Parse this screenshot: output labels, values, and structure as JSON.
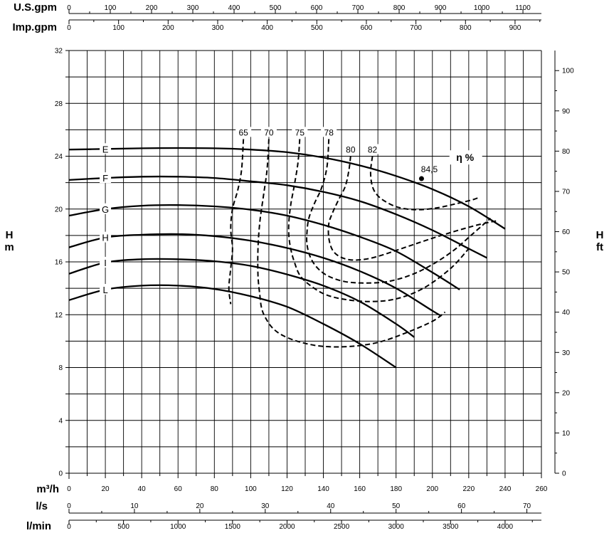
{
  "chart_data": {
    "type": "line",
    "title": "",
    "x_axis": {
      "label": "m³/h",
      "min": 0,
      "max": 260,
      "ticks": [
        0,
        20,
        40,
        60,
        80,
        100,
        120,
        140,
        160,
        180,
        200,
        220,
        240,
        260
      ]
    },
    "y_axis_left": {
      "label_top": "H",
      "label_bottom": "m",
      "min": 0,
      "max": 32,
      "ticks": [
        0,
        4,
        8,
        12,
        16,
        20,
        24,
        28,
        32
      ]
    },
    "y_axis_right": {
      "label_top": "H",
      "label_bottom": "ft",
      "ticks": [
        0,
        10,
        20,
        30,
        40,
        50,
        60,
        70,
        80,
        90,
        100
      ]
    },
    "secondary_x_axes": [
      {
        "label": "U.S.gpm",
        "ticks": [
          0,
          100,
          200,
          300,
          400,
          500,
          600,
          700,
          800,
          900,
          1000,
          1100
        ]
      },
      {
        "label": "Imp.gpm",
        "ticks": [
          0,
          100,
          200,
          300,
          400,
          500,
          600,
          700,
          800,
          900
        ]
      },
      {
        "label": "l/s",
        "ticks": [
          0,
          10,
          20,
          30,
          40,
          50,
          60,
          70
        ]
      },
      {
        "label": "l/min",
        "ticks": [
          0,
          500,
          1000,
          1500,
          2000,
          2500,
          3000,
          3500,
          4000
        ]
      }
    ],
    "grid": true,
    "series": [
      {
        "name": "E",
        "x": [
          0,
          20,
          40,
          60,
          80,
          100,
          120,
          140,
          160,
          180,
          200,
          220,
          240
        ],
        "y": [
          24.5,
          24.55,
          24.6,
          24.62,
          24.6,
          24.5,
          24.3,
          23.9,
          23.3,
          22.5,
          21.5,
          20.2,
          18.5
        ]
      },
      {
        "name": "F",
        "x": [
          0,
          20,
          40,
          60,
          80,
          100,
          120,
          140,
          160,
          180,
          200,
          220,
          230
        ],
        "y": [
          22.2,
          22.35,
          22.45,
          22.45,
          22.35,
          22.1,
          21.8,
          21.3,
          20.6,
          19.6,
          18.4,
          17.0,
          16.3
        ]
      },
      {
        "name": "G",
        "x": [
          0,
          20,
          40,
          60,
          80,
          100,
          120,
          140,
          160,
          180,
          200,
          215
        ],
        "y": [
          19.5,
          20.0,
          20.25,
          20.3,
          20.2,
          19.95,
          19.5,
          18.8,
          17.9,
          16.8,
          15.2,
          13.9
        ]
      },
      {
        "name": "H",
        "x": [
          0,
          20,
          40,
          60,
          80,
          100,
          120,
          140,
          160,
          180,
          200,
          205
        ],
        "y": [
          17.1,
          17.85,
          18.05,
          18.1,
          17.95,
          17.6,
          17.05,
          16.3,
          15.3,
          14.0,
          12.3,
          11.9
        ]
      },
      {
        "name": "I",
        "x": [
          0,
          20,
          40,
          60,
          80,
          100,
          120,
          140,
          160,
          180,
          190
        ],
        "y": [
          15.1,
          15.95,
          16.2,
          16.2,
          16.05,
          15.7,
          15.05,
          14.2,
          13.0,
          11.3,
          10.3
        ]
      },
      {
        "name": "L",
        "x": [
          0,
          20,
          40,
          60,
          80,
          100,
          120,
          140,
          160,
          180
        ],
        "y": [
          13.1,
          13.9,
          14.2,
          14.2,
          13.95,
          13.4,
          12.6,
          11.3,
          9.8,
          8.0
        ]
      }
    ],
    "efficiency_curves": [
      {
        "label": "65",
        "x": [
          96,
          95,
          93,
          90,
          89,
          90,
          89,
          88,
          89
        ],
        "y": [
          25.3,
          23.0,
          21.5,
          20.0,
          18.5,
          17.0,
          15.5,
          14.0,
          12.8
        ]
      },
      {
        "label": "70",
        "x": [
          110,
          109,
          107,
          105,
          104,
          104,
          105,
          106,
          108,
          112,
          118,
          128,
          140,
          155,
          170,
          185,
          200,
          207
        ],
        "y": [
          25.3,
          23.0,
          21.0,
          19.0,
          17.0,
          15.0,
          13.5,
          12.5,
          11.8,
          11.0,
          10.4,
          9.9,
          9.6,
          9.6,
          9.9,
          10.6,
          11.5,
          12.2
        ]
      },
      {
        "label": "75",
        "x": [
          127,
          126,
          124,
          122,
          121,
          121,
          122,
          124,
          127,
          132,
          140,
          150,
          165,
          180,
          195,
          210,
          220
        ],
        "y": [
          25.3,
          23.5,
          21.8,
          20.3,
          19.0,
          18.0,
          17.0,
          16.0,
          15.0,
          14.3,
          13.6,
          13.2,
          13.0,
          13.2,
          14.0,
          15.5,
          17.0
        ]
      },
      {
        "label": "78",
        "x": [
          143,
          142,
          139,
          135,
          132,
          131,
          131,
          133,
          137,
          143,
          152,
          163,
          175,
          188,
          200,
          212,
          222,
          232
        ],
        "y": [
          25.3,
          23.2,
          21.6,
          20.4,
          19.3,
          18.3,
          17.3,
          16.3,
          15.5,
          14.9,
          14.5,
          14.4,
          14.5,
          15.0,
          15.8,
          16.9,
          18.1,
          19.3
        ]
      },
      {
        "label": "80",
        "x": [
          155,
          154,
          152,
          148,
          145,
          143,
          143,
          145,
          149,
          155,
          163,
          172,
          185,
          198,
          212,
          225,
          235
        ],
        "y": [
          24.0,
          22.9,
          21.7,
          20.6,
          19.7,
          18.9,
          17.8,
          16.9,
          16.4,
          16.15,
          16.2,
          16.5,
          17.1,
          17.7,
          18.3,
          18.8,
          19.1
        ]
      },
      {
        "label": "82",
        "x": [
          167,
          166,
          167,
          170,
          175,
          182,
          192,
          203,
          213,
          222,
          226
        ],
        "y": [
          24.0,
          22.8,
          21.7,
          21.0,
          20.5,
          20.1,
          19.95,
          20.1,
          20.4,
          20.7,
          20.9
        ]
      }
    ],
    "annotations": [
      {
        "text": "84,5",
        "x": 194,
        "y": 22.3
      },
      {
        "text": "η %",
        "x": 218,
        "y": 23.8
      }
    ]
  }
}
